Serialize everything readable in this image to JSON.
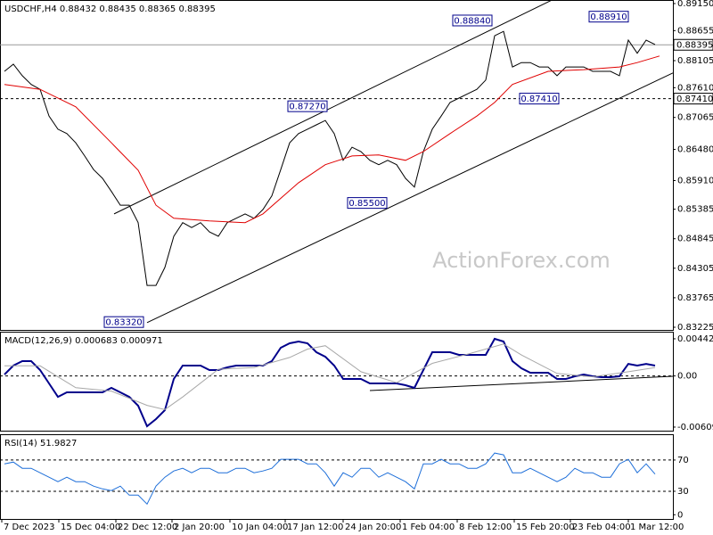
{
  "chart_data": [
    {
      "type": "line",
      "title": "USDCHF,H4  0.88432 0.88435 0.88365 0.88395",
      "watermark": "ActionForex.com",
      "xlim": [
        -0.5,
        75
      ],
      "ylim": [
        0.83176,
        0.89215
      ],
      "yticks": [
        {
          "value": 0.8915,
          "label": "0.89150"
        },
        {
          "value": 0.88655,
          "label": "0.88655"
        },
        {
          "value": 0.88105,
          "label": "0.88105"
        },
        {
          "value": 0.8761,
          "label": "0.87610"
        },
        {
          "value": 0.87065,
          "label": "0.87065"
        },
        {
          "value": 0.8648,
          "label": "0.86480"
        },
        {
          "value": 0.8591,
          "label": "0.85910"
        },
        {
          "value": 0.85385,
          "label": "0.85385"
        },
        {
          "value": 0.84845,
          "label": "0.84845"
        },
        {
          "value": 0.84305,
          "label": "0.84305"
        },
        {
          "value": 0.83765,
          "label": "0.83765"
        },
        {
          "value": 0.83225,
          "label": "0.83225"
        }
      ],
      "series": [
        {
          "color": "#000000",
          "width": 1,
          "values": [
            0.8791,
            0.8804,
            0.8783,
            0.8767,
            0.8758,
            0.8709,
            0.8685,
            0.8677,
            0.866,
            0.8636,
            0.8611,
            0.8595,
            0.8571,
            0.8546,
            0.8546,
            0.8514,
            0.8399,
            0.8399,
            0.8432,
            0.8489,
            0.8514,
            0.8505,
            0.8514,
            0.8497,
            0.8489,
            0.8514,
            0.8522,
            0.853,
            0.8522,
            0.8538,
            0.8563,
            0.8611,
            0.866,
            0.8677,
            0.8685,
            0.8693,
            0.8701,
            0.8677,
            0.8628,
            0.8652,
            0.8644,
            0.8628,
            0.862,
            0.8628,
            0.862,
            0.8595,
            0.8579,
            0.8644,
            0.8685,
            0.8709,
            0.8734,
            0.8742,
            0.875,
            0.8758,
            0.8775,
            0.8856,
            0.8864,
            0.8799,
            0.8807,
            0.8807,
            0.8799,
            0.8799,
            0.8783,
            0.8799,
            0.8799,
            0.8799,
            0.8791,
            0.8791,
            0.8791,
            0.8783,
            0.8848,
            0.8824,
            0.8848,
            0.884
          ]
        },
        {
          "color": "#e00000",
          "width": 1,
          "x": [
            0,
            4,
            8,
            12,
            15,
            17,
            19,
            23,
            27,
            29,
            33,
            36,
            39,
            42,
            45,
            47,
            50,
            53,
            55,
            57,
            61,
            65,
            69,
            71,
            73.5
          ],
          "values": [
            0.8767,
            0.8758,
            0.8726,
            0.866,
            0.861,
            0.8546,
            0.8522,
            0.8517,
            0.8514,
            0.853,
            0.8587,
            0.862,
            0.8636,
            0.8638,
            0.8628,
            0.8644,
            0.8677,
            0.8709,
            0.8734,
            0.8767,
            0.8791,
            0.8794,
            0.8799,
            0.8807,
            0.8819
          ]
        }
      ],
      "trendlines": [
        {
          "x": [
            12.3,
            61.5
          ],
          "y": [
            0.853,
            0.8922
          ]
        },
        {
          "x": [
            16,
            75
          ],
          "y": [
            0.8331,
            0.8788
          ]
        }
      ],
      "levels": [
        {
          "value": 0.88395,
          "label": "0.88395",
          "style": "solid"
        },
        {
          "value": 0.8741,
          "label": "0.87410",
          "style": "dashed"
        }
      ],
      "annotations": [
        {
          "value": 0.8332,
          "label": "0.83320",
          "x": 13.4
        },
        {
          "value": 0.8727,
          "label": "0.87270",
          "x": 34
        },
        {
          "value": 0.855,
          "label": "0.85500",
          "x": 40.7
        },
        {
          "value": 0.8884,
          "label": "0.88840",
          "x": 52.5
        },
        {
          "value": 0.8891,
          "label": "0.88910",
          "x": 67.8
        },
        {
          "value": 0.8741,
          "label": "0.87410",
          "x": 60
        }
      ]
    },
    {
      "type": "line",
      "title": "MACD(12,26,9) 0.000683 0.000971",
      "xlim": [
        -0.5,
        75
      ],
      "ylim": [
        -0.00652,
        0.00527
      ],
      "yticks": [
        {
          "value": 0.004425,
          "label": "0.004425"
        },
        {
          "value": 0,
          "label": "0.00"
        },
        {
          "value": -0.006092,
          "label": "-0.006092"
        }
      ],
      "series": [
        {
          "color": "#00008b",
          "width": 2,
          "values": [
            0.00017,
            0.00123,
            0.00176,
            0.00176,
            0.0007,
            -0.00089,
            -0.00249,
            -0.00195,
            -0.00195,
            -0.00195,
            -0.00195,
            -0.00195,
            -0.00142,
            -0.00195,
            -0.00249,
            -0.00355,
            -0.00599,
            -0.00514,
            -0.00408,
            -0.00036,
            0.00123,
            0.00123,
            0.00123,
            0.0007,
            0.0007,
            0.00102,
            0.00123,
            0.00123,
            0.00123,
            0.00123,
            0.00176,
            0.00336,
            0.00389,
            0.0041,
            0.00389,
            0.00283,
            0.00229,
            0.00123,
            -0.00036,
            -0.00036,
            -0.00036,
            -0.00089,
            -0.00089,
            -0.00089,
            -0.00089,
            -0.0011,
            -0.00142,
            0.0007,
            0.00283,
            0.00283,
            0.00283,
            0.00251,
            0.00251,
            0.00251,
            0.00251,
            0.00442,
            0.0041,
            0.00176,
            0.00091,
            0.00038,
            0.00038,
            0.00038,
            -0.00036,
            -0.00036,
            -4e-05,
            0.00017,
            -4e-05,
            -0.00015,
            -0.00015,
            -4e-05,
            0.00144,
            0.00123,
            0.00144,
            0.00123
          ]
        },
        {
          "color": "#a8a8a8",
          "width": 1,
          "x": [
            0,
            4,
            8,
            12,
            16,
            18,
            20,
            24,
            28,
            32,
            34,
            36,
            40,
            44,
            48,
            52,
            56,
            58,
            62,
            66,
            70,
            73
          ],
          "values": [
            0.0012,
            0.0012,
            -0.0014,
            -0.0018,
            -0.0035,
            -0.004,
            -0.0025,
            0.0008,
            0.001,
            0.0022,
            0.0032,
            0.0036,
            0.0005,
            -0.0008,
            0.0015,
            0.0026,
            0.0038,
            0.0025,
            0.0003,
            -0.0001,
            0.0005,
            0.001
          ]
        }
      ],
      "trendlines": [
        {
          "x": [
            41,
            75
          ],
          "y": [
            -0.00174,
            -4e-05
          ]
        }
      ],
      "levels": [
        {
          "value": 0,
          "style": "dashed"
        }
      ]
    },
    {
      "type": "line",
      "title": "RSI(14) 51.9827",
      "xlim": [
        -0.5,
        75
      ],
      "ylim": [
        -5.4,
        103
      ],
      "yticks": [
        70,
        30,
        0
      ],
      "xticks": [
        {
          "value": -0.3,
          "label": "7 Dec 2023"
        },
        {
          "value": 6.1,
          "label": "15 Dec 04:00"
        },
        {
          "value": 12.5,
          "label": "22 Dec 12:00"
        },
        {
          "value": 18.8,
          "label": "2 Jan 20:00"
        },
        {
          "value": 25.3,
          "label": "10 Jan 04:00"
        },
        {
          "value": 31.5,
          "label": "17 Jan 12:00"
        },
        {
          "value": 38,
          "label": "24 Jan 20:00"
        },
        {
          "value": 44.4,
          "label": "1 Feb 04:00"
        },
        {
          "value": 50.8,
          "label": "8 Feb 12:00"
        },
        {
          "value": 57.2,
          "label": "15 Feb 20:00"
        },
        {
          "value": 63.5,
          "label": "23 Feb 04:00"
        },
        {
          "value": 70,
          "label": "1 Mar 12:00"
        }
      ],
      "series": [
        {
          "color": "#1e6fd9",
          "width": 1,
          "values": [
            65.1,
            67.4,
            59.4,
            59.4,
            53.7,
            48,
            42.3,
            48,
            42.3,
            42.3,
            36.6,
            33.1,
            30.9,
            36.6,
            25.1,
            25.1,
            13.7,
            36.6,
            48,
            56,
            59.4,
            53.7,
            59.4,
            59.4,
            53.7,
            53.7,
            59.4,
            59.4,
            53.7,
            56,
            59.4,
            70.9,
            70.9,
            70.9,
            65.1,
            65.1,
            53.7,
            36.6,
            53.7,
            48,
            59.4,
            59.4,
            48,
            53.7,
            48,
            42.3,
            33.1,
            65.1,
            65.1,
            70.9,
            65.1,
            65.1,
            59.4,
            59.4,
            65.1,
            78.9,
            76.6,
            53.7,
            53.7,
            59.4,
            53.7,
            48,
            42.3,
            48,
            59.4,
            53.7,
            53.7,
            48,
            48,
            65.1,
            70.9,
            53.7,
            65.1,
            52
          ]
        }
      ],
      "levels": [
        {
          "value": 70,
          "style": "dashed"
        },
        {
          "value": 30,
          "style": "dashed"
        }
      ]
    }
  ]
}
